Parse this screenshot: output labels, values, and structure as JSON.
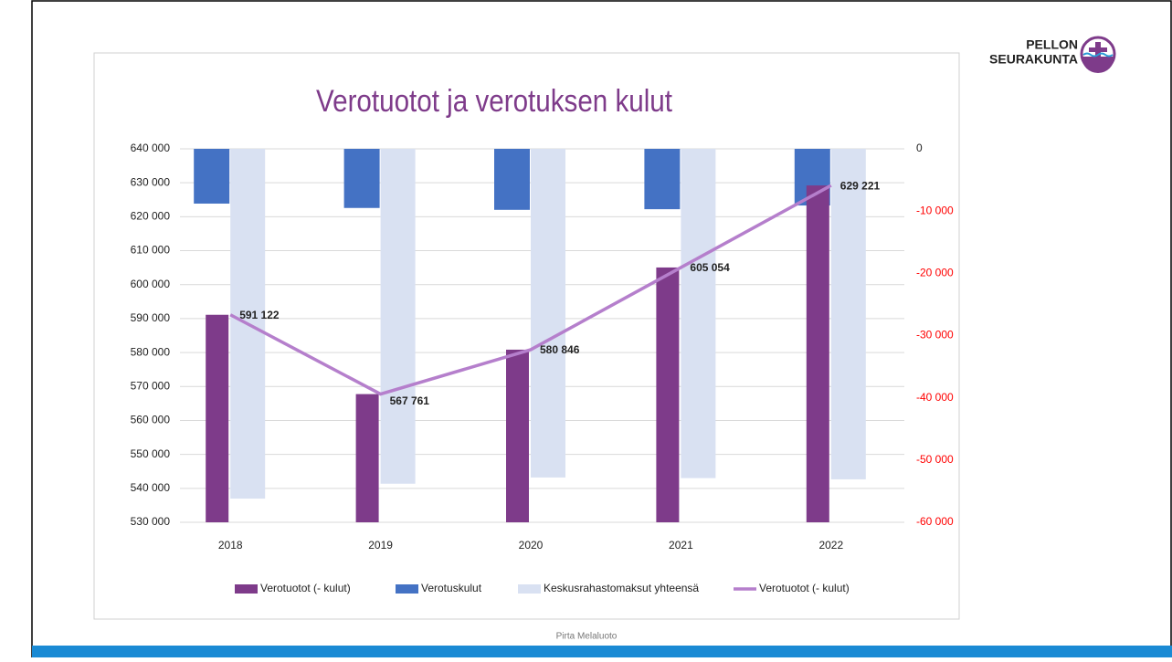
{
  "slide": {
    "logo": [
      "PELLON",
      "SEURAKUNTA"
    ],
    "footer": "Pirta Melaluoto"
  },
  "chart_data": {
    "type": "bar",
    "title": "Verotuotot ja verotuksen kulut",
    "categories": [
      "2018",
      "2019",
      "2020",
      "2021",
      "2022"
    ],
    "series": [
      {
        "name": "Verotuotot (- kulut)",
        "color": "#7e3b8a",
        "axis": "y",
        "values": [
          591122,
          567761,
          580846,
          605054,
          629221
        ]
      },
      {
        "name": "Verotuskulut",
        "color": "#4472c4",
        "axis": "y2",
        "values": [
          -8800,
          -9500,
          -9800,
          -9700,
          -9100
        ]
      },
      {
        "name": "Keskusrahastomaksut yhteensä",
        "color": "#d9e1f2",
        "axis": "y2",
        "values": [
          -56200,
          -53800,
          -52800,
          -52900,
          -53100
        ]
      },
      {
        "name": "Verotuotot (- kulut)",
        "color": "#b57fcc",
        "axis": "y",
        "type": "line",
        "values": [
          591122,
          567761,
          580846,
          605054,
          629221
        ],
        "value_labels": [
          "591 122",
          "567 761",
          "580 846",
          "605 054",
          "629 221"
        ]
      }
    ],
    "ylim": [
      530000,
      640000
    ],
    "yticks": [
      {
        "value": 530000,
        "label": "530 000"
      },
      {
        "value": 540000,
        "label": "540 000"
      },
      {
        "value": 550000,
        "label": "550 000"
      },
      {
        "value": 560000,
        "label": "560 000"
      },
      {
        "value": 570000,
        "label": "570 000"
      },
      {
        "value": 580000,
        "label": "580 000"
      },
      {
        "value": 590000,
        "label": "590 000"
      },
      {
        "value": 600000,
        "label": "600 000"
      },
      {
        "value": 610000,
        "label": "610 000"
      },
      {
        "value": 620000,
        "label": "620 000"
      },
      {
        "value": 630000,
        "label": "630 000"
      },
      {
        "value": 640000,
        "label": "640 000"
      }
    ],
    "y2lim": [
      -60000,
      0
    ],
    "y2ticks": [
      {
        "value": -60000,
        "label": "-60 000"
      },
      {
        "value": -50000,
        "label": "-50 000"
      },
      {
        "value": -40000,
        "label": "-40 000"
      },
      {
        "value": -30000,
        "label": "-30 000"
      },
      {
        "value": -20000,
        "label": "-20 000"
      },
      {
        "value": -10000,
        "label": "-10 000"
      },
      0
    ],
    "grid": true,
    "legend": "bottom"
  }
}
